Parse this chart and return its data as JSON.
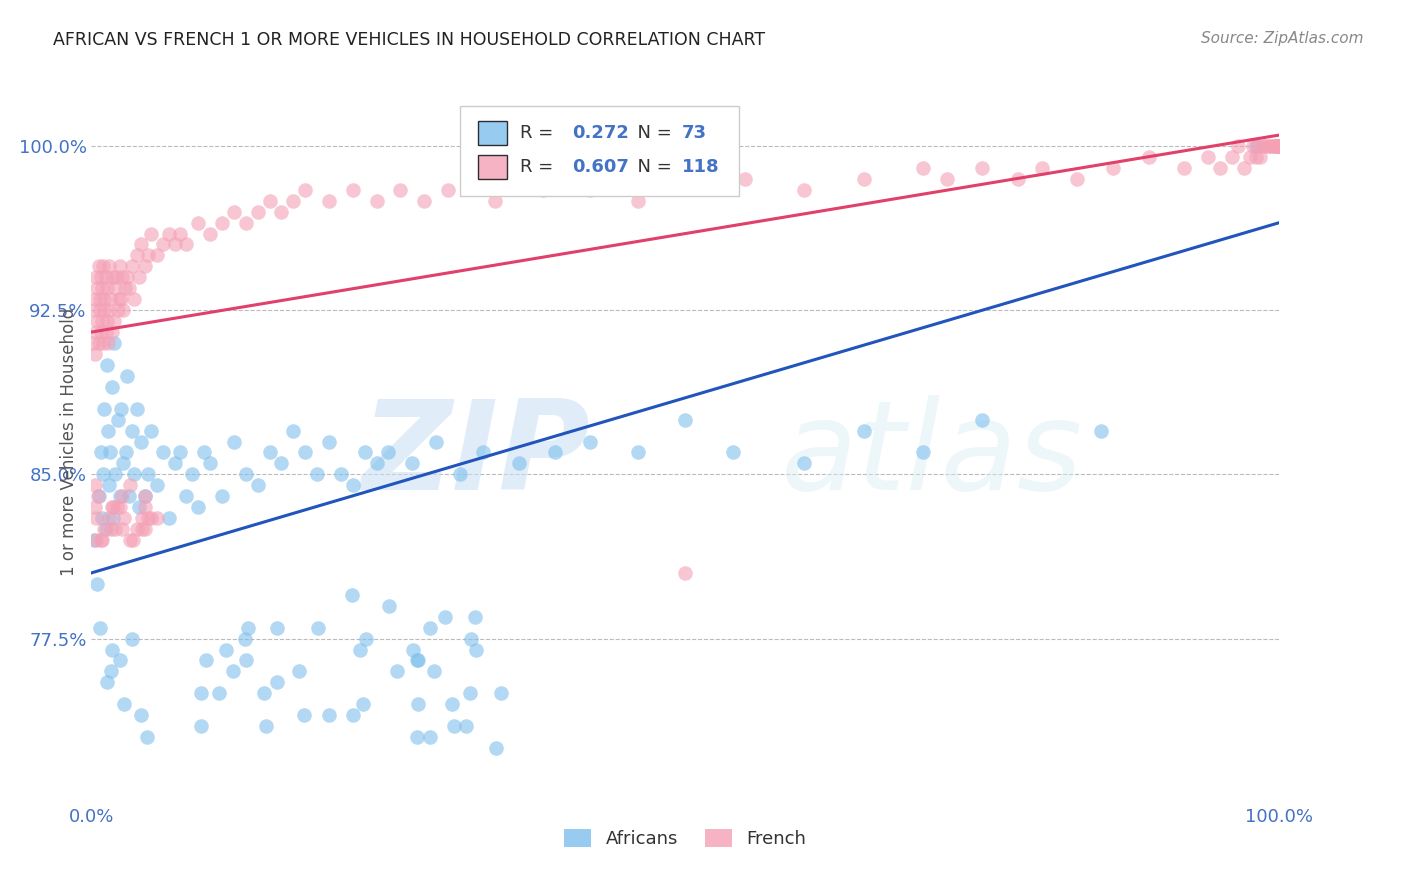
{
  "title": "AFRICAN VS FRENCH 1 OR MORE VEHICLES IN HOUSEHOLD CORRELATION CHART",
  "source": "Source: ZipAtlas.com",
  "ylabel": "1 or more Vehicles in Household",
  "africans_color": "#7fbfed",
  "french_color": "#f4a0b5",
  "line_color_blue": "#2255bb",
  "line_color_pink": "#e0406a",
  "watermark_zip": "ZIP",
  "watermark_atlas": "atlas",
  "background_color": "#ffffff",
  "grid_color": "#bbbbbb",
  "title_color": "#222222",
  "tick_color": "#4472c4",
  "africans_x": [
    0.002,
    0.005,
    0.006,
    0.007,
    0.008,
    0.009,
    0.01,
    0.011,
    0.012,
    0.013,
    0.014,
    0.015,
    0.016,
    0.017,
    0.018,
    0.019,
    0.02,
    0.022,
    0.024,
    0.025,
    0.027,
    0.029,
    0.03,
    0.032,
    0.034,
    0.036,
    0.038,
    0.04,
    0.042,
    0.045,
    0.048,
    0.05,
    0.055,
    0.06,
    0.065,
    0.07,
    0.075,
    0.08,
    0.085,
    0.09,
    0.095,
    0.1,
    0.11,
    0.12,
    0.13,
    0.14,
    0.15,
    0.16,
    0.17,
    0.18,
    0.19,
    0.2,
    0.21,
    0.22,
    0.23,
    0.24,
    0.25,
    0.27,
    0.29,
    0.31,
    0.33,
    0.36,
    0.39,
    0.42,
    0.46,
    0.5,
    0.54,
    0.6,
    0.65,
    0.7,
    0.75,
    0.85,
    0.98
  ],
  "africans_y": [
    82.0,
    80.0,
    84.0,
    78.0,
    86.0,
    83.0,
    85.0,
    88.0,
    82.5,
    90.0,
    87.0,
    84.5,
    86.0,
    89.0,
    83.0,
    91.0,
    85.0,
    87.5,
    84.0,
    88.0,
    85.5,
    86.0,
    89.5,
    84.0,
    87.0,
    85.0,
    88.0,
    83.5,
    86.5,
    84.0,
    85.0,
    87.0,
    84.5,
    86.0,
    83.0,
    85.5,
    86.0,
    84.0,
    85.0,
    83.5,
    86.0,
    85.5,
    84.0,
    86.5,
    85.0,
    84.5,
    86.0,
    85.5,
    87.0,
    86.0,
    85.0,
    86.5,
    85.0,
    84.5,
    86.0,
    85.5,
    86.0,
    85.5,
    86.5,
    85.0,
    86.0,
    85.5,
    86.0,
    86.5,
    86.0,
    87.5,
    86.0,
    85.5,
    87.0,
    86.0,
    87.5,
    87.0,
    100.0
  ],
  "africans_y_low": [
    74.0,
    72.5,
    76.0,
    73.5,
    78.0,
    75.0,
    74.5,
    76.5,
    73.0,
    77.0,
    74.5,
    73.0,
    75.5,
    74.0,
    76.0,
    73.5,
    75.0,
    74.0,
    76.5,
    73.5,
    75.0,
    74.5,
    77.0,
    73.0,
    75.5,
    74.0,
    76.5,
    73.5,
    75.0,
    77.5,
    76.0,
    74.5,
    77.5,
    76.0,
    78.0,
    77.0,
    78.5,
    76.5,
    75.0,
    77.5,
    76.5,
    78.0,
    77.0,
    79.0,
    77.5,
    76.0,
    78.5,
    77.0,
    79.5,
    78.0
  ],
  "french_x": [
    0.001,
    0.002,
    0.003,
    0.003,
    0.004,
    0.004,
    0.005,
    0.005,
    0.006,
    0.006,
    0.007,
    0.007,
    0.008,
    0.008,
    0.009,
    0.009,
    0.01,
    0.01,
    0.011,
    0.011,
    0.012,
    0.012,
    0.013,
    0.013,
    0.014,
    0.015,
    0.015,
    0.016,
    0.017,
    0.018,
    0.019,
    0.02,
    0.021,
    0.022,
    0.023,
    0.024,
    0.025,
    0.026,
    0.027,
    0.028,
    0.03,
    0.032,
    0.034,
    0.036,
    0.038,
    0.04,
    0.042,
    0.045,
    0.048,
    0.05,
    0.055,
    0.06,
    0.065,
    0.07,
    0.075,
    0.08,
    0.09,
    0.1,
    0.11,
    0.12,
    0.13,
    0.14,
    0.15,
    0.16,
    0.17,
    0.18,
    0.2,
    0.22,
    0.24,
    0.26,
    0.28,
    0.3,
    0.34,
    0.38,
    0.42,
    0.46,
    0.5,
    0.55,
    0.6,
    0.65,
    0.7,
    0.72,
    0.75,
    0.78,
    0.8,
    0.83,
    0.86,
    0.89,
    0.92,
    0.94,
    0.95,
    0.96,
    0.965,
    0.97,
    0.975,
    0.978,
    0.98,
    0.982,
    0.984,
    0.986,
    0.988,
    0.99,
    0.992,
    0.994,
    0.995,
    0.996,
    0.997,
    0.998,
    0.999,
    1.0,
    1.0,
    1.0,
    1.0,
    1.0,
    1.0,
    1.0,
    1.0,
    1.0
  ],
  "french_y": [
    91.0,
    92.5,
    90.5,
    93.0,
    91.5,
    94.0,
    92.0,
    93.5,
    91.0,
    94.5,
    92.5,
    93.0,
    91.5,
    94.0,
    92.0,
    93.5,
    91.0,
    94.5,
    92.5,
    93.0,
    91.5,
    94.0,
    92.0,
    93.5,
    91.0,
    94.5,
    92.5,
    93.0,
    91.5,
    94.0,
    92.0,
    93.5,
    94.0,
    92.5,
    93.0,
    94.5,
    93.0,
    94.0,
    92.5,
    93.5,
    94.0,
    93.5,
    94.5,
    93.0,
    95.0,
    94.0,
    95.5,
    94.5,
    95.0,
    96.0,
    95.0,
    95.5,
    96.0,
    95.5,
    96.0,
    95.5,
    96.5,
    96.0,
    96.5,
    97.0,
    96.5,
    97.0,
    97.5,
    97.0,
    97.5,
    98.0,
    97.5,
    98.0,
    97.5,
    98.0,
    97.5,
    98.0,
    97.5,
    98.0,
    98.0,
    97.5,
    80.5,
    98.5,
    98.0,
    98.5,
    99.0,
    98.5,
    99.0,
    98.5,
    99.0,
    98.5,
    99.0,
    99.5,
    99.0,
    99.5,
    99.0,
    99.5,
    100.0,
    99.0,
    99.5,
    100.0,
    99.5,
    100.0,
    99.5,
    100.0,
    100.0,
    100.0,
    100.0,
    100.0,
    100.0,
    100.0,
    100.0,
    100.0,
    100.0,
    100.0,
    100.0,
    100.0,
    100.0,
    100.0,
    100.0,
    100.0,
    100.0,
    100.0
  ],
  "french_y_low": [
    83.0,
    82.5,
    83.5,
    82.0,
    84.0,
    83.0,
    82.5,
    84.5,
    83.0,
    82.0,
    83.5,
    82.5,
    83.0,
    82.0,
    83.5,
    82.5,
    83.0,
    84.0,
    83.5,
    82.5,
    83.0,
    82.5,
    84.5,
    83.5,
    82.0,
    84.0,
    83.0,
    82.5,
    83.5,
    82.0
  ],
  "xlim": [
    0.0,
    1.0
  ],
  "ylim": [
    70.0,
    103.0
  ],
  "blue_line_x0": 0.0,
  "blue_line_y0": 80.5,
  "blue_line_x1": 1.0,
  "blue_line_y1": 96.5,
  "pink_line_x0": 0.0,
  "pink_line_y0": 91.5,
  "pink_line_x1": 1.0,
  "pink_line_y1": 100.5
}
